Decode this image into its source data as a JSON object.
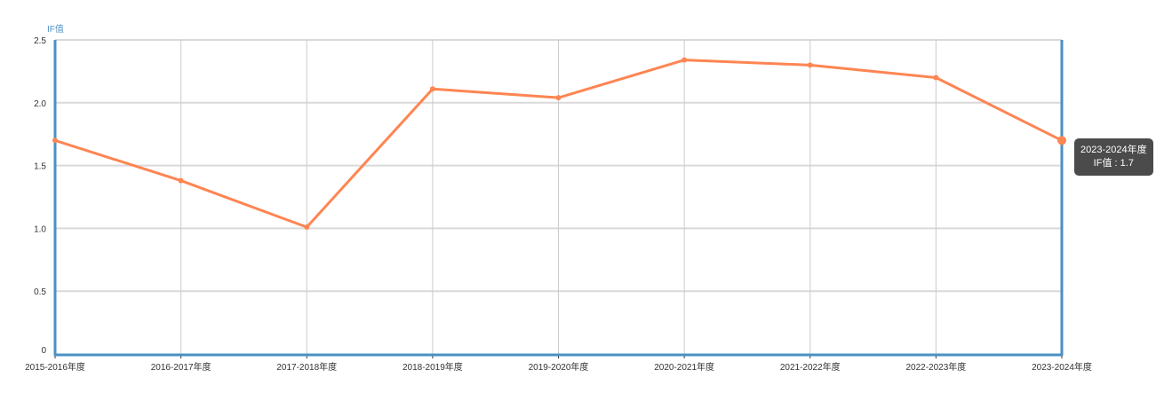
{
  "chart_data": {
    "type": "line",
    "ylabel": "IF值",
    "xlabel": "",
    "categories": [
      "2015-2016年度",
      "2016-2017年度",
      "2017-2018年度",
      "2018-2019年度",
      "2019-2020年度",
      "2020-2021年度",
      "2021-2022年度",
      "2022-2023年度",
      "2023-2024年度"
    ],
    "series": [
      {
        "values": [
          1.7,
          1.38,
          1.01,
          2.11,
          2.04,
          2.34,
          2.3,
          2.2,
          1.7
        ]
      }
    ],
    "ylim": [
      0,
      2.5
    ],
    "yticks": [
      "0",
      "0.5",
      "1.0",
      "1.5",
      "2.0",
      "2.5"
    ],
    "grid": true,
    "colors": {
      "line": "#ff8552",
      "axis": "#4a90c4",
      "grid": "#d9d9d9"
    }
  },
  "tooltip": {
    "title": "2023-2024年度",
    "label": "IF值",
    "separator": ":",
    "value": "1.7"
  }
}
